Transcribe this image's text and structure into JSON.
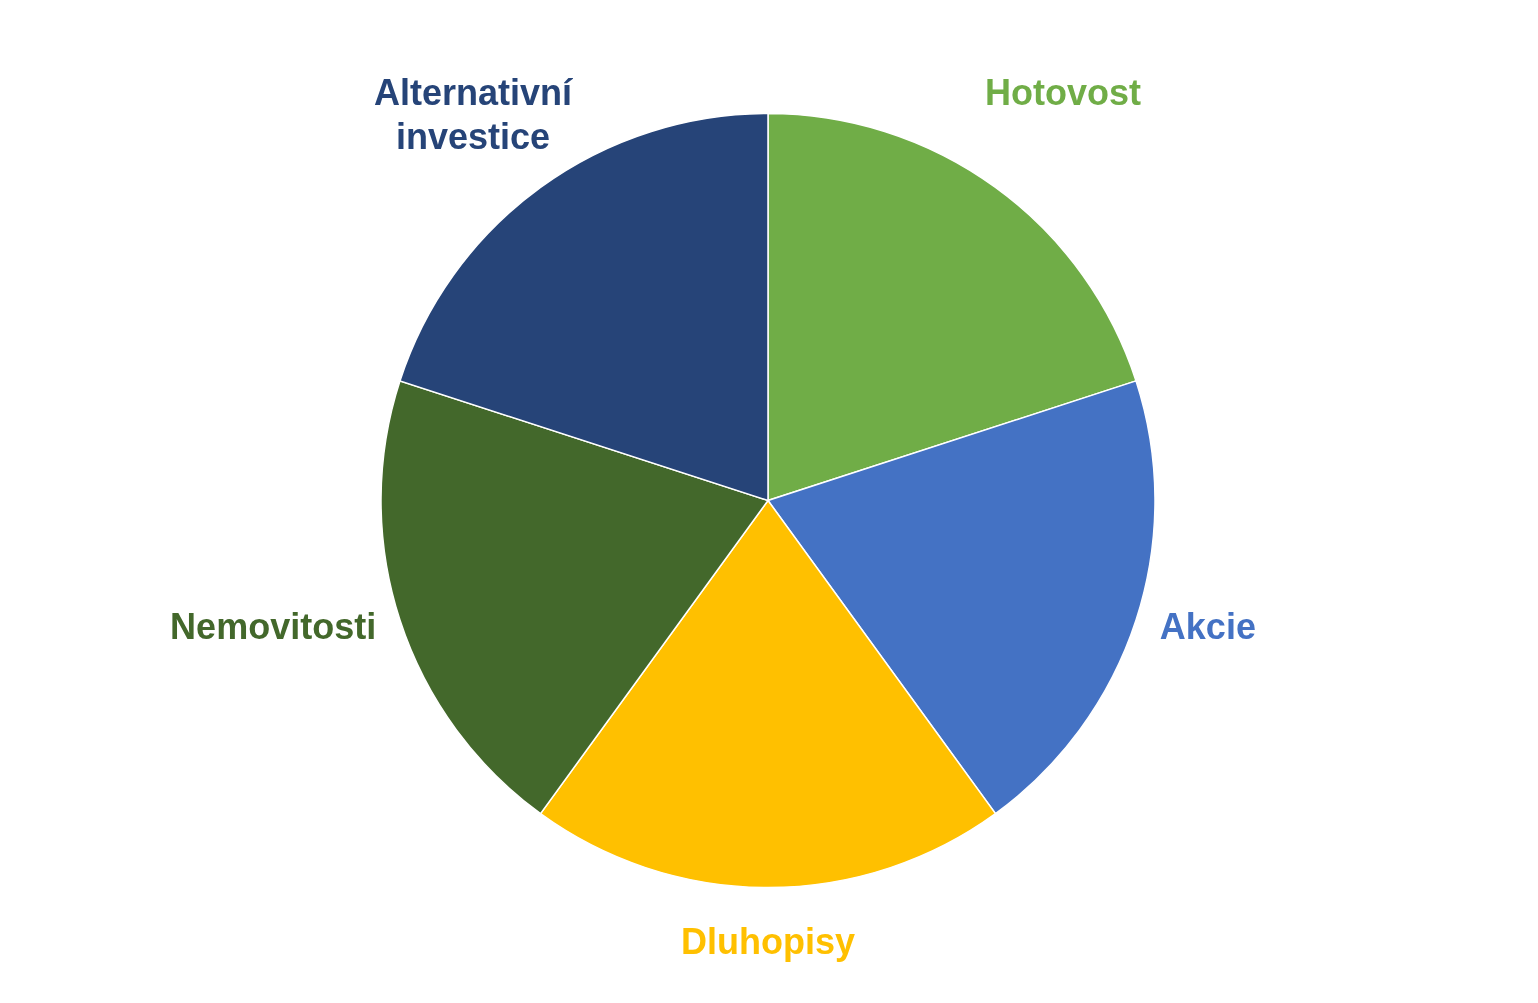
{
  "chart_data": {
    "type": "pie",
    "categories": [
      "Hotovost",
      "Akcie",
      "Dluhopisy",
      "Nemovitosti",
      "Alternativní investice"
    ],
    "values": [
      20,
      20,
      20,
      20,
      20
    ],
    "colors": [
      "#70ad47",
      "#4472c4",
      "#ffc000",
      "#43682b",
      "#264478"
    ]
  }
}
